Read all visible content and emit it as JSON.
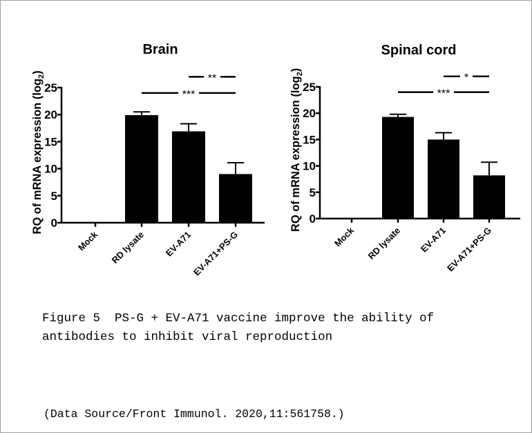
{
  "chart_data": [
    {
      "type": "bar",
      "title": "Brain",
      "ylabel": "RQ of mRNA expression (log2)",
      "ylabel_main": "RQ of mRNA expression (log",
      "ylabel_sub": "2",
      "ylabel_close": ")",
      "xlabel": "",
      "ylim": [
        0,
        25
      ],
      "yticks": [
        "0",
        "5",
        "10",
        "15",
        "20",
        "25"
      ],
      "categories": [
        "Mock",
        "RD lysate",
        "EV-A71",
        "EV-A71+PS-G"
      ],
      "values": [
        0,
        19.9,
        16.9,
        9.0
      ],
      "errors": [
        0,
        0.6,
        1.4,
        2.1
      ],
      "significance": [
        {
          "from": "RD lysate",
          "to": "EV-A71+PS-G",
          "label": "***",
          "level": 24
        },
        {
          "from": "EV-A71",
          "to": "EV-A71+PS-G",
          "label": "**",
          "level": 27
        }
      ],
      "bar_color": "#000000"
    },
    {
      "type": "bar",
      "title": "Spinal cord",
      "ylabel": "RQ of mRNA expression (log2)",
      "ylabel_main": "RQ of mRNA expression (log",
      "ylabel_sub": "2",
      "ylabel_close": ")",
      "xlabel": "",
      "ylim": [
        0,
        25
      ],
      "yticks": [
        "0",
        "5",
        "10",
        "15",
        "20",
        "25"
      ],
      "categories": [
        "Mock",
        "RD lysate",
        "EV-A71",
        "EV-A71+PS-G"
      ],
      "values": [
        0,
        19.3,
        15.0,
        8.2
      ],
      "errors": [
        0,
        0.5,
        1.3,
        2.5
      ],
      "significance": [
        {
          "from": "RD lysate",
          "to": "EV-A71+PS-G",
          "label": "***",
          "level": 24
        },
        {
          "from": "EV-A71",
          "to": "EV-A71+PS-G",
          "label": "*",
          "level": 27
        }
      ],
      "bar_color": "#000000"
    }
  ],
  "caption": {
    "line1": "Figure 5  PS-G + EV-A71 vaccine improve the ability of",
    "line2": "antibodies to inhibit viral reproduction"
  },
  "source": "(Data Source/Front Immunol. 2020,11:561758.)"
}
